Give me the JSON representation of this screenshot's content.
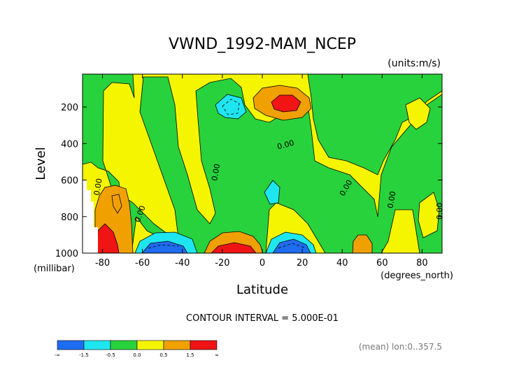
{
  "chart_data": {
    "type": "heatmap",
    "title": "VWND_1992-MAM_NCEP",
    "units_label": "(units:m/s)",
    "xlabel": "Latitude",
    "x_unit_label": "(degrees_north)",
    "ylabel": "Level",
    "y_unit_label": "(millibar)",
    "xlim": [
      -90,
      90
    ],
    "ylim": [
      1000,
      20
    ],
    "x_ticks": [
      -80,
      -60,
      -40,
      -20,
      0,
      20,
      40,
      60,
      80
    ],
    "x_tick_labels": [
      "-80",
      "-60",
      "-40",
      "-20",
      "0",
      "20",
      "40",
      "60",
      "80"
    ],
    "y_ticks": [
      200,
      400,
      600,
      800,
      1000
    ],
    "y_tick_labels": [
      "200",
      "400",
      "600",
      "800",
      "1000"
    ],
    "contour_interval_text": "CONTOUR INTERVAL = 5.000E-01",
    "footnote": "(mean) lon:0..357.5",
    "contour_labels": [
      {
        "text": "0.00",
        "lat": 12,
        "lev": 420
      },
      {
        "text": "0.00",
        "lat": -22,
        "lev": 560
      },
      {
        "text": "0.00",
        "lat": -81,
        "lev": 640
      },
      {
        "text": "0.00",
        "lat": -60,
        "lev": 790
      },
      {
        "text": "0.00",
        "lat": 43,
        "lev": 650
      },
      {
        "text": "0.00",
        "lat": 66,
        "lev": 710
      },
      {
        "text": "0.00",
        "lat": 90,
        "lev": 770
      }
    ],
    "colorbar": {
      "levels": [
        "-∞",
        "-1.5",
        "-0.5",
        "0.0",
        "0.5",
        "1.5",
        "∞"
      ],
      "colors": [
        "#1e6cf0",
        "#1ee6f0",
        "#28d23c",
        "#f5f500",
        "#f0a000",
        "#f01414"
      ]
    },
    "features": [
      {
        "lat": 10,
        "lev": 150,
        "value": 2.0
      },
      {
        "lat": -17,
        "lev": 990,
        "value": 2.0
      },
      {
        "lat": -80,
        "lev": 950,
        "value": 2.0
      },
      {
        "lat": -50,
        "lev": 980,
        "value": -1.2
      },
      {
        "lat": 10,
        "lev": 985,
        "value": -1.2
      },
      {
        "lat": -15,
        "lev": 170,
        "value": -0.8
      },
      {
        "lat": 5,
        "lev": 650,
        "value": -0.7
      },
      {
        "lat": 50,
        "lev": 960,
        "value": 0.7
      }
    ]
  }
}
